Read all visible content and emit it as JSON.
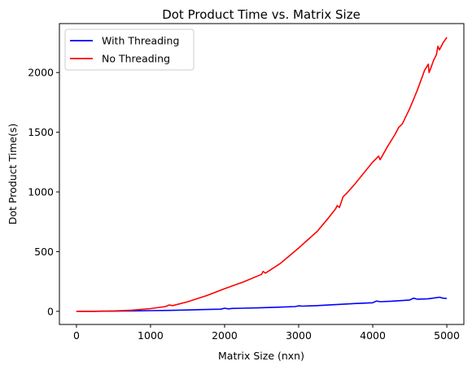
{
  "chart_data": {
    "type": "line",
    "title": "Dot Product Time vs. Matrix Size",
    "xlabel": "Matrix Size (nxn)",
    "ylabel": "Dot Product Time(s)",
    "xlim": [
      -230,
      5230
    ],
    "ylim": [
      -110,
      2410
    ],
    "xticks": [
      0,
      1000,
      2000,
      3000,
      4000,
      5000
    ],
    "yticks": [
      0,
      500,
      1000,
      1500,
      2000
    ],
    "grid": false,
    "legend_position": "top-left",
    "series": [
      {
        "name": "With Threading",
        "color": "#0000ff",
        "x": [
          0,
          250,
          500,
          750,
          1000,
          1250,
          1500,
          1750,
          1950,
          2000,
          2050,
          2100,
          2250,
          2500,
          2750,
          2950,
          3000,
          3050,
          3250,
          3500,
          3750,
          4000,
          4050,
          4100,
          4250,
          4500,
          4550,
          4600,
          4750,
          4900,
          4950,
          5000
        ],
        "y": [
          0,
          0.5,
          1.5,
          3.5,
          6,
          8,
          11,
          15,
          18,
          26,
          21,
          24,
          26,
          30,
          35,
          40,
          46,
          43,
          48,
          56,
          65,
          72,
          86,
          81,
          85,
          95,
          110,
          102,
          105,
          118,
          110,
          108
        ]
      },
      {
        "name": "No Threading",
        "color": "#ff0000",
        "x": [
          0,
          250,
          500,
          750,
          1000,
          1200,
          1250,
          1300,
          1500,
          1750,
          2000,
          2250,
          2500,
          2520,
          2550,
          2750,
          3000,
          3250,
          3400,
          3500,
          3520,
          3550,
          3600,
          3650,
          3750,
          4000,
          4080,
          4100,
          4200,
          4300,
          4350,
          4400,
          4500,
          4600,
          4700,
          4750,
          4760,
          4780,
          4820,
          4860,
          4880,
          4900,
          4950,
          5000
        ],
        "y": [
          0,
          0.5,
          3,
          10,
          23,
          40,
          53,
          48,
          80,
          130,
          190,
          245,
          310,
          335,
          320,
          400,
          530,
          670,
          780,
          860,
          885,
          870,
          960,
          990,
          1060,
          1250,
          1300,
          1270,
          1380,
          1480,
          1540,
          1570,
          1700,
          1850,
          2020,
          2070,
          2000,
          2030,
          2100,
          2150,
          2220,
          2190,
          2250,
          2295
        ]
      }
    ]
  }
}
